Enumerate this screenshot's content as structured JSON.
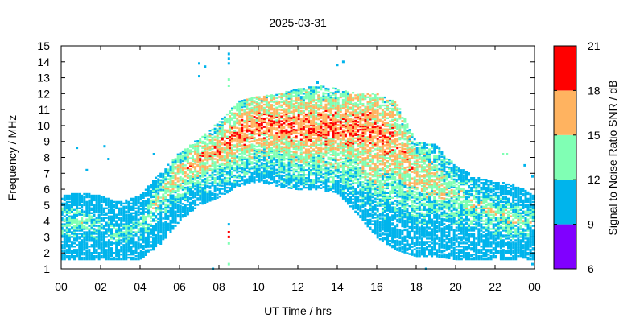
{
  "chart_data": {
    "type": "heatmap",
    "title": "2025-03-31",
    "xlabel": "UT Time / hrs",
    "ylabel": "Frequency / MHz",
    "xlim": [
      0,
      24
    ],
    "ylim": [
      1,
      15
    ],
    "x_ticks": [
      "00",
      "02",
      "04",
      "06",
      "08",
      "10",
      "12",
      "14",
      "16",
      "18",
      "20",
      "22",
      "00"
    ],
    "y_ticks": [
      "1",
      "2",
      "3",
      "4",
      "5",
      "6",
      "7",
      "8",
      "9",
      "10",
      "11",
      "12",
      "13",
      "14",
      "15"
    ],
    "colorbar": {
      "label": "Signal to Noise Ratio SNR / dB",
      "range": [
        6,
        21
      ],
      "ticks": [
        "6",
        "9",
        "12",
        "15",
        "18",
        "21"
      ],
      "bands": [
        {
          "from": 6,
          "to": 9,
          "color": "#8000ff"
        },
        {
          "from": 9,
          "to": 12,
          "color": "#00b4ec"
        },
        {
          "from": 12,
          "to": 15,
          "color": "#80ffb4"
        },
        {
          "from": 15,
          "to": 18,
          "color": "#ffb360"
        },
        {
          "from": 18,
          "to": 21,
          "color": "#ff0000"
        }
      ]
    },
    "envelope": [
      {
        "t": 0.0,
        "fmin": 1.6,
        "fmax": 5.6,
        "peak": 4.0,
        "snr": 13
      },
      {
        "t": 1.0,
        "fmin": 1.6,
        "fmax": 5.8,
        "peak": 4.0,
        "snr": 13
      },
      {
        "t": 2.0,
        "fmin": 1.6,
        "fmax": 5.6,
        "peak": 3.5,
        "snr": 12
      },
      {
        "t": 3.0,
        "fmin": 1.6,
        "fmax": 5.2,
        "peak": 3.2,
        "snr": 12
      },
      {
        "t": 4.0,
        "fmin": 1.6,
        "fmax": 5.6,
        "peak": 3.5,
        "snr": 13
      },
      {
        "t": 5.0,
        "fmin": 2.5,
        "fmax": 7.0,
        "peak": 5.5,
        "snr": 14
      },
      {
        "t": 6.0,
        "fmin": 4.0,
        "fmax": 8.3,
        "peak": 7.0,
        "snr": 16
      },
      {
        "t": 7.0,
        "fmin": 5.0,
        "fmax": 9.2,
        "peak": 7.8,
        "snr": 17
      },
      {
        "t": 8.0,
        "fmin": 5.5,
        "fmax": 10.2,
        "peak": 8.5,
        "snr": 17
      },
      {
        "t": 9.0,
        "fmin": 6.2,
        "fmax": 11.5,
        "peak": 9.5,
        "snr": 18
      },
      {
        "t": 10.0,
        "fmin": 6.5,
        "fmax": 11.8,
        "peak": 10.0,
        "snr": 18
      },
      {
        "t": 11.0,
        "fmin": 6.2,
        "fmax": 12.0,
        "peak": 10.0,
        "snr": 18
      },
      {
        "t": 12.0,
        "fmin": 6.0,
        "fmax": 12.3,
        "peak": 9.8,
        "snr": 18
      },
      {
        "t": 13.0,
        "fmin": 6.0,
        "fmax": 12.5,
        "peak": 9.8,
        "snr": 18
      },
      {
        "t": 14.0,
        "fmin": 5.8,
        "fmax": 12.3,
        "peak": 9.8,
        "snr": 18
      },
      {
        "t": 15.0,
        "fmin": 4.5,
        "fmax": 12.0,
        "peak": 9.8,
        "snr": 18
      },
      {
        "t": 16.0,
        "fmin": 3.0,
        "fmax": 12.0,
        "peak": 9.5,
        "snr": 18
      },
      {
        "t": 17.0,
        "fmin": 2.2,
        "fmax": 11.5,
        "peak": 9.0,
        "snr": 17
      },
      {
        "t": 18.0,
        "fmin": 1.8,
        "fmax": 9.0,
        "peak": 7.0,
        "snr": 16
      },
      {
        "t": 19.0,
        "fmin": 1.8,
        "fmax": 8.8,
        "peak": 6.5,
        "snr": 15
      },
      {
        "t": 20.0,
        "fmin": 1.6,
        "fmax": 7.5,
        "peak": 5.5,
        "snr": 14
      },
      {
        "t": 21.0,
        "fmin": 1.6,
        "fmax": 6.8,
        "peak": 5.0,
        "snr": 14
      },
      {
        "t": 22.0,
        "fmin": 1.6,
        "fmax": 6.5,
        "peak": 4.5,
        "snr": 14
      },
      {
        "t": 23.0,
        "fmin": 1.6,
        "fmax": 6.3,
        "peak": 4.0,
        "snr": 14
      },
      {
        "t": 24.0,
        "fmin": 1.6,
        "fmax": 5.6,
        "peak": 4.0,
        "snr": 13
      }
    ],
    "outliers": [
      {
        "t": 0.8,
        "f": 8.6,
        "snr": 10
      },
      {
        "t": 1.3,
        "f": 7.2,
        "snr": 10
      },
      {
        "t": 2.2,
        "f": 8.7,
        "snr": 10
      },
      {
        "t": 2.4,
        "f": 7.9,
        "snr": 10
      },
      {
        "t": 4.7,
        "f": 8.2,
        "snr": 10
      },
      {
        "t": 7.0,
        "f": 13.9,
        "snr": 10
      },
      {
        "t": 7.0,
        "f": 13.1,
        "snr": 10
      },
      {
        "t": 7.3,
        "f": 13.7,
        "snr": 10
      },
      {
        "t": 8.5,
        "f": 14.5,
        "snr": 10
      },
      {
        "t": 8.5,
        "f": 14.2,
        "snr": 10
      },
      {
        "t": 8.5,
        "f": 13.9,
        "snr": 10
      },
      {
        "t": 8.5,
        "f": 12.9,
        "snr": 13
      },
      {
        "t": 8.5,
        "f": 12.5,
        "snr": 13
      },
      {
        "t": 8.5,
        "f": 3.8,
        "snr": 10
      },
      {
        "t": 8.5,
        "f": 3.3,
        "snr": 19
      },
      {
        "t": 8.5,
        "f": 3.0,
        "snr": 19
      },
      {
        "t": 8.5,
        "f": 2.6,
        "snr": 13
      },
      {
        "t": 8.5,
        "f": 1.3,
        "snr": 13
      },
      {
        "t": 7.7,
        "f": 1.0,
        "snr": 10
      },
      {
        "t": 13.0,
        "f": 12.7,
        "snr": 10
      },
      {
        "t": 14.0,
        "f": 13.8,
        "snr": 10
      },
      {
        "t": 14.3,
        "f": 14.0,
        "snr": 10
      },
      {
        "t": 22.4,
        "f": 8.2,
        "snr": 13
      },
      {
        "t": 22.6,
        "f": 8.2,
        "snr": 13
      },
      {
        "t": 23.5,
        "f": 7.5,
        "snr": 10
      },
      {
        "t": 23.9,
        "f": 6.8,
        "snr": 10
      },
      {
        "t": 23.9,
        "f": 1.3,
        "snr": 10
      },
      {
        "t": 18.5,
        "f": 1.0,
        "snr": 10
      }
    ],
    "grid": false,
    "legend": "colorbar-right"
  }
}
